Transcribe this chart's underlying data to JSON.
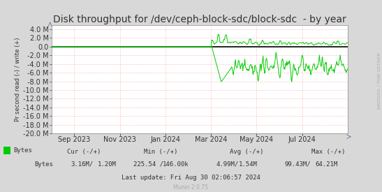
{
  "title": "Disk throughput for /dev/ceph-block-sdc/block-sdc  - by year",
  "ylabel": "Pr second read (-) / write (+)",
  "sidebar_text": "RRDTOOL / TOBI OETIKER",
  "bg_color": "#d8d8d8",
  "plot_bg_color": "#ffffff",
  "grid_color": "#f08080",
  "line_color": "#00cc00",
  "zero_line_color": "#000000",
  "ylim": [
    -20000000,
    5000000
  ],
  "yticks": [
    -20000000,
    -18000000,
    -16000000,
    -14000000,
    -12000000,
    -10000000,
    -8000000,
    -6000000,
    -4000000,
    -2000000,
    0,
    2000000,
    4000000
  ],
  "ytick_labels": [
    "-20.0 M",
    "-18.0 M",
    "-16.0 M",
    "-14.0 M",
    "-12.0 M",
    "-10.0 M",
    "-8.0 M",
    "-6.0 M",
    "-4.0 M",
    "-2.0 M",
    "0.0",
    "2.0 M",
    "4.0 M"
  ],
  "xtick_labels": [
    "Sep 2023",
    "Nov 2023",
    "Jan 2024",
    "Mar 2024",
    "May 2024",
    "Jul 2024"
  ],
  "legend_label": "Bytes",
  "legend_color": "#00cc00",
  "cur_label": "Cur (-/+)",
  "min_label": "Min (-/+)",
  "avg_label": "Avg (-/+)",
  "max_label": "Max (-/+)",
  "bytes_row": "Bytes   3.16M/    1.20M    225.54 / 146.00k        4.99M/    1.54M        99.43M/   64.21M",
  "last_update": "Last update: Fri Aug 30 02:06:57 2024",
  "munin_text": "Munin 2.0.75",
  "title_fontsize": 10,
  "axis_fontsize": 7,
  "footer_fontsize": 6.5
}
